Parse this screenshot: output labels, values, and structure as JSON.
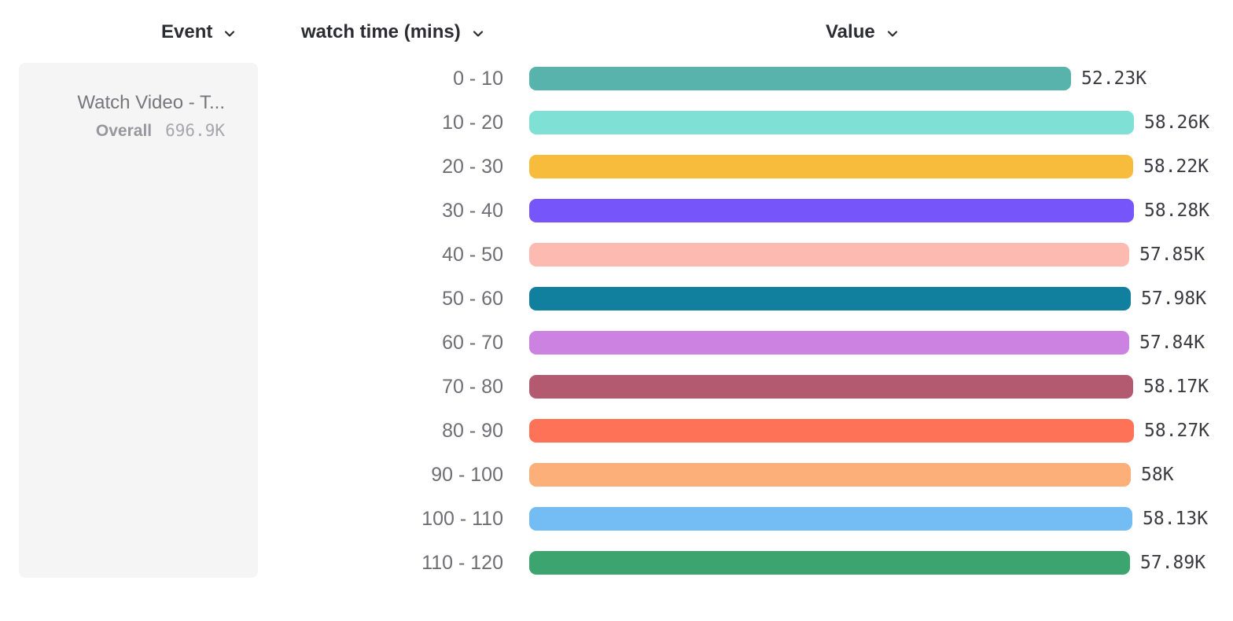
{
  "header": {
    "columns": [
      {
        "id": "event",
        "label": "Event"
      },
      {
        "id": "breakdown",
        "label": "watch time (mins)"
      },
      {
        "id": "value",
        "label": "Value"
      }
    ]
  },
  "event_card": {
    "title": "Watch Video - T...",
    "overall_label": "Overall",
    "overall_value": "696.9K"
  },
  "chart_data": {
    "type": "bar",
    "orientation": "horizontal",
    "title": "",
    "xlabel": "Value",
    "ylabel": "watch time (mins)",
    "legend": "none",
    "grid": false,
    "max_value": 58280,
    "axis_range": [
      0,
      58280
    ],
    "categories": [
      "0 - 10",
      "10 - 20",
      "20 - 30",
      "30 - 40",
      "40 - 50",
      "50 - 60",
      "60 - 70",
      "70 - 80",
      "80 - 90",
      "90 - 100",
      "100 - 110",
      "110 - 120"
    ],
    "values": [
      52230,
      58260,
      58220,
      58280,
      57850,
      57980,
      57840,
      58170,
      58270,
      58000,
      58130,
      57890
    ],
    "display_values": [
      "52.23K",
      "58.26K",
      "58.22K",
      "58.28K",
      "57.85K",
      "57.98K",
      "57.84K",
      "58.17K",
      "58.27K",
      "58K",
      "58.13K",
      "57.89K"
    ],
    "colors": [
      "#57b3ab",
      "#7fe0d5",
      "#f7bc3b",
      "#7655fa",
      "#fdbab1",
      "#11809f",
      "#cb82e0",
      "#b35a70",
      "#fe7257",
      "#fcaf79",
      "#73bdf4",
      "#3ca46f"
    ]
  },
  "ui_colors": {
    "card_background": "#f5f5f6",
    "header_text": "#2c2c33",
    "category_text": "#6e6e74",
    "value_text": "#3a3a40"
  }
}
